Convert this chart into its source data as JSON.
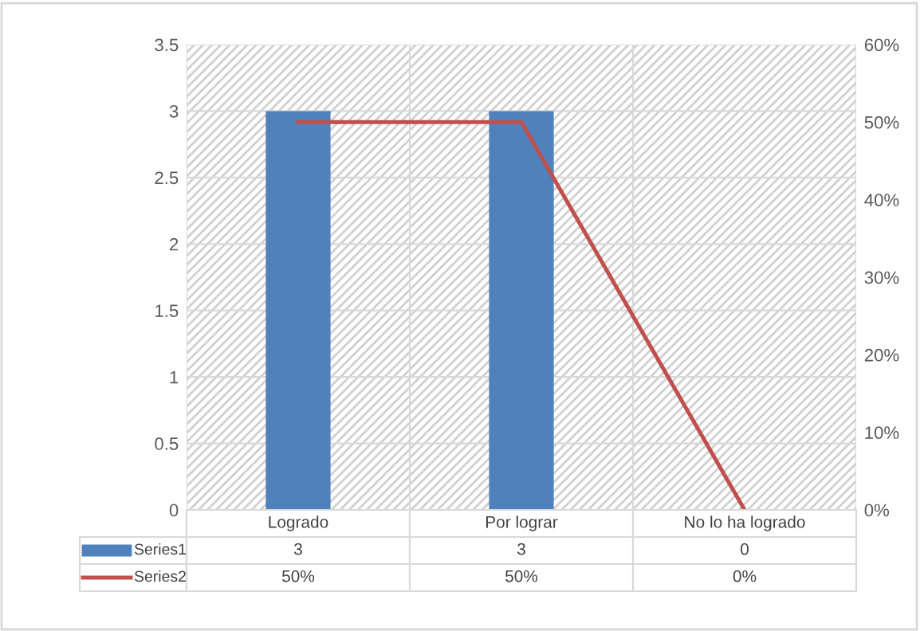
{
  "chart_data": {
    "type": "bar",
    "categories": [
      "Logrado",
      "Por lograr",
      "No lo ha logrado"
    ],
    "series": [
      {
        "name": "Series1",
        "color": "#4f81bd",
        "values": [
          3,
          3,
          0
        ],
        "value_labels": [
          "3",
          "3",
          "0"
        ]
      },
      {
        "name": "Series2",
        "type": "line",
        "axis": "y2",
        "color": "#c0504d",
        "values": [
          50,
          50,
          0
        ],
        "value_labels": [
          "50%",
          "50%",
          "0%"
        ]
      }
    ],
    "ylim": [
      0,
      3.5
    ],
    "yticks": [
      0,
      0.5,
      1,
      1.5,
      2,
      2.5,
      3,
      3.5
    ],
    "y2lim": [
      0,
      60
    ],
    "y2ticks": [
      {
        "value": 0,
        "label": "0%"
      },
      {
        "value": 10,
        "label": "10%"
      },
      {
        "value": 20,
        "label": "20%"
      },
      {
        "value": 30,
        "label": "30%"
      },
      {
        "value": 40,
        "label": "40%"
      },
      {
        "value": 50,
        "label": "50%"
      },
      {
        "value": 60,
        "label": "60%"
      }
    ],
    "grid": true,
    "legend": "bottom left",
    "marker": "none",
    "line_style": "solid"
  }
}
